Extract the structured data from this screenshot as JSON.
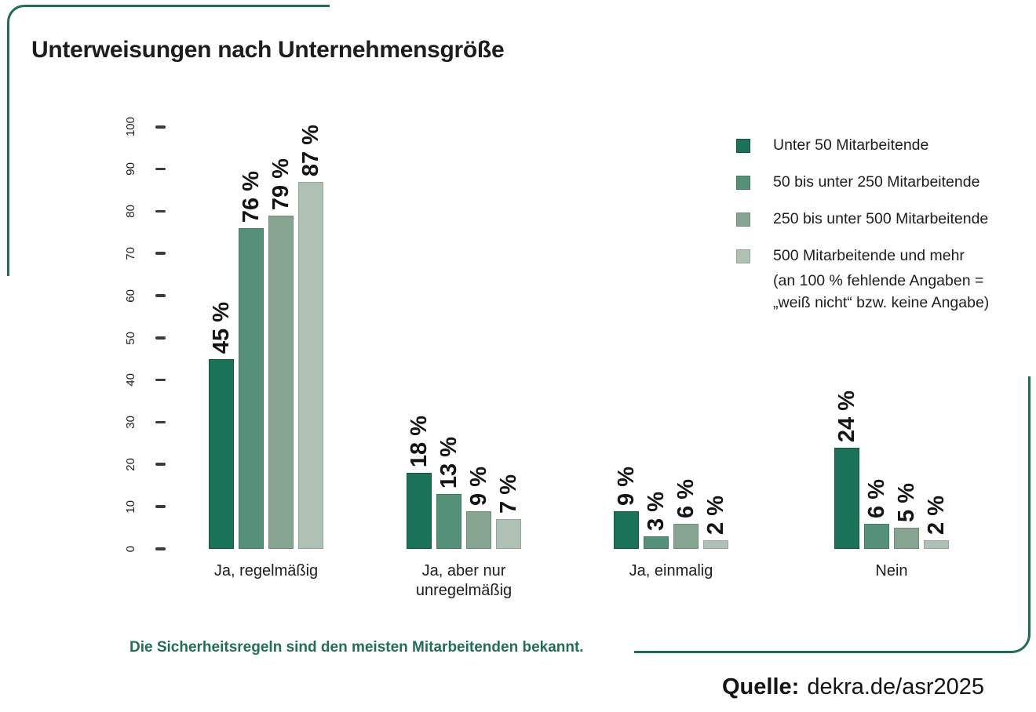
{
  "title": "Unterweisungen nach Unternehmensgröße",
  "accent_color": "#1E6F56",
  "legend": {
    "items": [
      {
        "label": "Unter 50 Mitarbeitende",
        "color": "#1A7259",
        "border": "#11583F"
      },
      {
        "label": "50 bis unter 250 Mitarbeitende",
        "color": "#559078",
        "border": "#447962"
      },
      {
        "label": "250 bis unter 500 Mitarbeitende",
        "color": "#87A491",
        "border": "#6E8C7A"
      },
      {
        "label": "500 Mitarbeitende und mehr",
        "color": "#AFC0B4",
        "border": "#95A79B"
      }
    ],
    "note_line1": "(an 100 % fehlende Angaben =",
    "note_line2": "„weiß nicht“ bzw. keine Angabe)"
  },
  "takeaway": "Die Sicherheitsregeln sind den meisten Mitarbeitenden bekannt.",
  "source": {
    "label": "Quelle:",
    "value": "dekra.de/asr2025"
  },
  "chart_data": {
    "type": "bar",
    "title": "Unterweisungen nach Unternehmensgröße",
    "categories": [
      "Ja, regelmäßig",
      "Ja, aber nur\nunregelmäßig",
      "Ja, einmalig",
      "Nein"
    ],
    "series": [
      {
        "name": "Unter 50 Mitarbeitende",
        "color": "#1A7259",
        "border": "#11583F",
        "values": [
          45,
          18,
          9,
          24
        ]
      },
      {
        "name": "50 bis unter 250 Mitarbeitende",
        "color": "#559078",
        "border": "#447962",
        "values": [
          76,
          13,
          3,
          6
        ]
      },
      {
        "name": "250 bis unter 500 Mitarbeitende",
        "color": "#87A491",
        "border": "#6E8C7A",
        "values": [
          79,
          9,
          6,
          5
        ]
      },
      {
        "name": "500 Mitarbeitende und mehr",
        "color": "#AFC0B4",
        "border": "#95A79B",
        "values": [
          87,
          7,
          2,
          2
        ]
      }
    ],
    "value_suffix": " %",
    "yticks": [
      0,
      10,
      20,
      30,
      40,
      50,
      60,
      70,
      80,
      90,
      100
    ],
    "ylim": [
      0,
      100
    ],
    "xlabel": "",
    "ylabel": "",
    "grid": false,
    "legend_position": "right",
    "note": "(an 100 % fehlende Angaben = „weiß nicht“ bzw. keine Angabe)"
  }
}
